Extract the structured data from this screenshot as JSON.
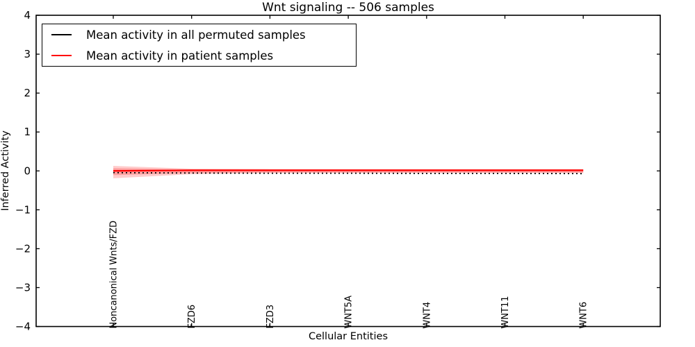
{
  "chart_data": {
    "type": "line",
    "title": "Wnt signaling -- 506 samples",
    "xlabel": "Cellular Entities",
    "ylabel": "Inferred Activity",
    "ylim": [
      -4,
      4
    ],
    "grid": false,
    "legend_position": "upper left",
    "frame": true,
    "yticks": [
      {
        "label": "4",
        "value": 4
      },
      {
        "label": "3",
        "value": 3
      },
      {
        "label": "2",
        "value": 2
      },
      {
        "label": "1",
        "value": 1
      },
      {
        "label": "0",
        "value": 0
      },
      {
        "label": "−1",
        "value": -1
      },
      {
        "label": "−2",
        "value": -2
      },
      {
        "label": "−3",
        "value": -3
      },
      {
        "label": "−4",
        "value": -4
      }
    ],
    "categories": [
      "Noncanonical Wnts/FZD",
      "FZD6",
      "FZD3",
      "WNT5A",
      "WNT4",
      "WNT11",
      "WNT6"
    ],
    "series": [
      {
        "name": "Mean activity in all permuted samples",
        "color": "#000000",
        "linestyle": "dotted",
        "values": [
          -0.045,
          -0.055,
          -0.06,
          -0.06,
          -0.065,
          -0.065,
          -0.07
        ]
      },
      {
        "name": "Mean activity in patient samples",
        "color": "#ff0000",
        "linestyle": "solid",
        "values": [
          0.0,
          0.015,
          0.015,
          0.015,
          0.015,
          0.015,
          0.015
        ]
      }
    ],
    "bands": [
      {
        "name": "patient-samples-outer-band",
        "color": "#ff0000",
        "opacity": 0.2,
        "upper": [
          0.13,
          0.055,
          0.05,
          0.05,
          0.05,
          0.05,
          0.05
        ],
        "lower": [
          -0.19,
          -0.085,
          -0.06,
          -0.06,
          -0.06,
          -0.06,
          -0.06
        ]
      },
      {
        "name": "patient-samples-inner-band",
        "color": "#ff0000",
        "opacity": 0.22,
        "upper": [
          0.07,
          0.04,
          0.035,
          0.035,
          0.035,
          0.035,
          0.035
        ],
        "lower": [
          -0.11,
          -0.055,
          -0.04,
          -0.04,
          -0.04,
          -0.04,
          -0.04
        ]
      }
    ]
  }
}
